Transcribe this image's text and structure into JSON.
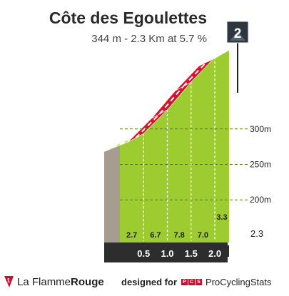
{
  "header": {
    "title": "Côte des Egoulettes",
    "subtitle": "344 m - 2.3 Km at 5.7 %"
  },
  "category_badge": {
    "label": "2",
    "icon": "mountain-category-icon"
  },
  "footer": {
    "brand_prefix": "La Flamme",
    "brand_suffix": "Rouge",
    "designed_by": "designed for",
    "pcs_badge": "PCS",
    "pcs_name": "ProCyclingStats"
  },
  "colors": {
    "steep": "#d7132b",
    "moderate": "#9ccc2f",
    "side_wall": "#a79d8e",
    "km_band": "#2d2d2d",
    "top_face": "#c8ee7a"
  },
  "chart_data": {
    "type": "area",
    "title": "Côte des Egoulettes",
    "subtitle": "344 m - 2.3 Km at 5.7 %",
    "distance_km": [
      0,
      0.5,
      1.0,
      1.5,
      2.0,
      2.3
    ],
    "km_labels": [
      "0.5",
      "1.0",
      "1.5",
      "2.0"
    ],
    "end_label": "2.3",
    "segment_gradients": [
      "2.7",
      "6.7",
      "7.8",
      "7.0",
      "3.3"
    ],
    "segment_grad_values": [
      2.7,
      6.7,
      7.8,
      7.0,
      3.3
    ],
    "steep_segments": [
      1,
      2,
      3
    ],
    "elevation_ticks": [
      200,
      250,
      300
    ],
    "elevation_unit": "m",
    "elevation_tick_labels": [
      "200m",
      "250m",
      "300m"
    ],
    "ylim": [
      162,
      345
    ],
    "xlim": [
      0,
      2.3
    ]
  }
}
